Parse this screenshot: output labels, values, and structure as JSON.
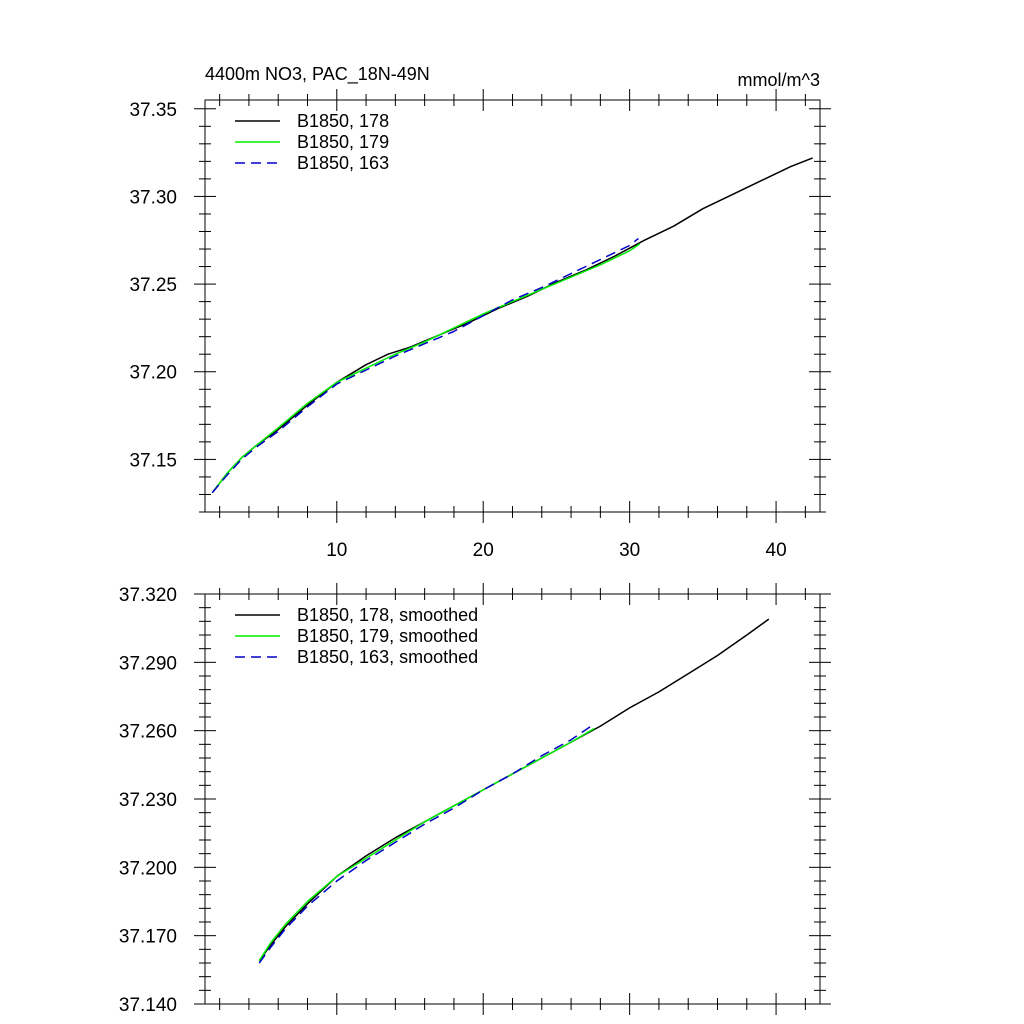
{
  "chart_data": [
    {
      "type": "line",
      "title": "4400m NO3, PAC_18N-49N",
      "units": "mmol/m^3",
      "xlim": [
        1,
        43
      ],
      "ylim": [
        37.12,
        37.355
      ],
      "x_ticks": [
        10,
        20,
        30,
        40
      ],
      "x_tick_labels": [
        "10",
        "20",
        "30",
        "40"
      ],
      "y_ticks": [
        37.15,
        37.2,
        37.25,
        37.3,
        37.35
      ],
      "y_tick_labels": [
        "37.15",
        "37.20",
        "37.25",
        "37.30",
        "37.35"
      ],
      "legend_position": "top-left",
      "series": [
        {
          "name": "B1850, 178",
          "color": "#000000",
          "dash": "solid",
          "x": [
            1.5,
            2.5,
            3.5,
            4.5,
            6,
            8,
            10,
            12,
            13.5,
            15,
            17,
            19,
            21,
            23,
            25,
            27,
            29,
            31,
            33,
            35,
            37,
            39,
            40,
            41,
            42.5
          ],
          "y": [
            37.131,
            37.142,
            37.151,
            37.158,
            37.167,
            37.181,
            37.194,
            37.204,
            37.21,
            37.214,
            37.221,
            37.228,
            37.236,
            37.243,
            37.251,
            37.258,
            37.266,
            37.275,
            37.283,
            37.293,
            37.301,
            37.309,
            37.313,
            37.317,
            37.322
          ]
        },
        {
          "name": "B1850, 179",
          "color": "#00ee00",
          "dash": "solid",
          "x": [
            1.5,
            2.5,
            3.5,
            4.5,
            6,
            8,
            10,
            12,
            14,
            16,
            18,
            20,
            22,
            24,
            26,
            28,
            30,
            30.7
          ],
          "y": [
            37.131,
            37.142,
            37.151,
            37.158,
            37.168,
            37.182,
            37.194,
            37.202,
            37.21,
            37.217,
            37.225,
            37.233,
            37.24,
            37.247,
            37.254,
            37.261,
            37.269,
            37.273
          ]
        },
        {
          "name": "B1850, 163",
          "color": "#0000c8",
          "dash": "dashed",
          "x": [
            1.5,
            2.5,
            3.5,
            4.5,
            6,
            8,
            10,
            12,
            14,
            16,
            18,
            20,
            22,
            24,
            26,
            28,
            30,
            30.6
          ],
          "y": [
            37.131,
            37.141,
            37.15,
            37.157,
            37.166,
            37.18,
            37.193,
            37.201,
            37.209,
            37.216,
            37.223,
            37.232,
            37.241,
            37.248,
            37.256,
            37.264,
            37.272,
            37.276
          ]
        }
      ]
    },
    {
      "type": "line",
      "xlim": [
        1,
        43
      ],
      "ylim": [
        37.14,
        37.32
      ],
      "x_ticks": [
        10,
        20,
        30,
        40
      ],
      "x_tick_labels": [],
      "y_ticks": [
        37.14,
        37.17,
        37.2,
        37.23,
        37.26,
        37.29,
        37.32
      ],
      "y_tick_labels": [
        "37.140",
        "37.170",
        "37.200",
        "37.230",
        "37.260",
        "37.290",
        "37.320"
      ],
      "legend_position": "top-left",
      "series": [
        {
          "name": "B1850, 178, smoothed",
          "color": "#000000",
          "dash": "solid",
          "x": [
            4.7,
            5.5,
            6.5,
            8,
            10,
            12,
            14,
            16,
            18,
            20,
            22,
            24,
            26,
            28,
            30,
            32,
            34,
            36,
            38,
            39.5
          ],
          "y": [
            37.159,
            37.166,
            37.174,
            37.184,
            37.196,
            37.205,
            37.213,
            37.22,
            37.227,
            37.234,
            37.241,
            37.248,
            37.255,
            37.262,
            37.27,
            37.277,
            37.285,
            37.293,
            37.302,
            37.309
          ]
        },
        {
          "name": "B1850, 179, smoothed",
          "color": "#00ee00",
          "dash": "solid",
          "x": [
            4.7,
            5.5,
            6.5,
            8,
            10,
            12,
            14,
            16,
            18,
            20,
            22,
            24,
            26,
            27.6
          ],
          "y": [
            37.159,
            37.167,
            37.175,
            37.185,
            37.196,
            37.204,
            37.212,
            37.22,
            37.227,
            37.234,
            37.241,
            37.248,
            37.255,
            37.261
          ]
        },
        {
          "name": "B1850, 163, smoothed",
          "color": "#0000c8",
          "dash": "dashed",
          "x": [
            4.7,
            5.5,
            6.5,
            8,
            10,
            12,
            14,
            16,
            18,
            20,
            22,
            24,
            26,
            27.6
          ],
          "y": [
            37.158,
            37.165,
            37.173,
            37.183,
            37.194,
            37.203,
            37.211,
            37.219,
            37.226,
            37.234,
            37.241,
            37.249,
            37.256,
            37.263
          ]
        }
      ]
    }
  ]
}
